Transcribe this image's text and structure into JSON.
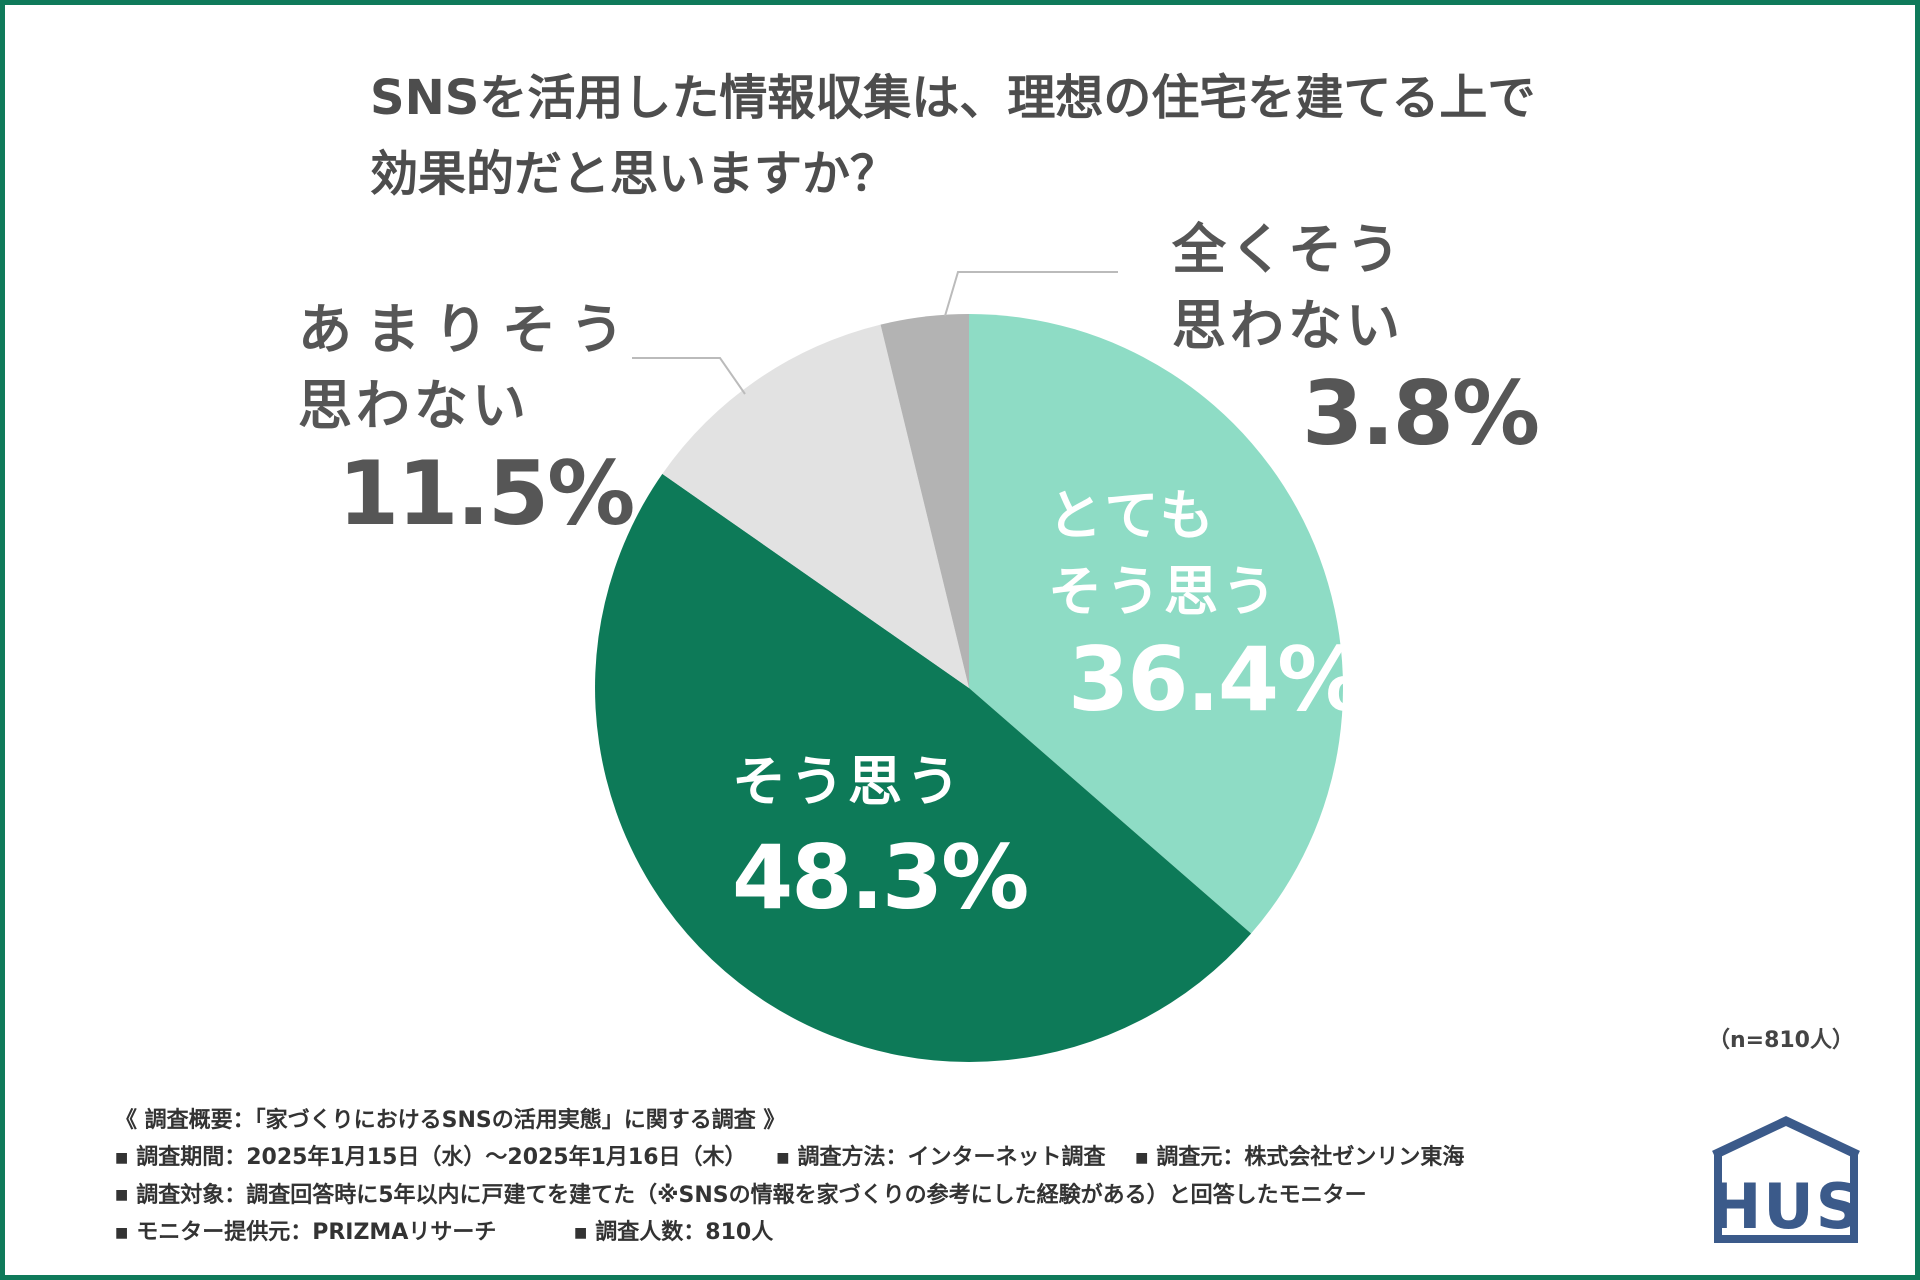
{
  "title": {
    "line1": "SNSを活用した情報収集は、理想の住宅を建てる上で",
    "line2": "効果的だと思いますか？"
  },
  "chart_data": {
    "type": "pie",
    "title": "SNSを活用した情報収集は、理想の住宅を建てる上で効果的だと思いますか？",
    "slices": [
      {
        "key": "very",
        "label_line1": "とても",
        "label_line2": "そう思う",
        "value": 36.4,
        "pct_label": "36.4%",
        "color": "#8edcc5"
      },
      {
        "key": "agree",
        "label_line1": "そう思う",
        "label_line2": "",
        "value": 48.3,
        "pct_label": "48.3%",
        "color": "#0d7a58"
      },
      {
        "key": "notmuch",
        "label_line1": "あまりそう",
        "label_line2": "思わない",
        "value": 11.5,
        "pct_label": "11.5%",
        "color": "#e2e2e2"
      },
      {
        "key": "notatall",
        "label_line1": "全くそう",
        "label_line2": "思わない",
        "value": 3.8,
        "pct_label": "3.8%",
        "color": "#b3b3b3"
      }
    ],
    "start": "12 o'clock, clockwise"
  },
  "n_note": "（n=810人）",
  "summary": {
    "heading": "《 調査概要：「家づくりにおけるSNSの活用実態」に関する調査 》",
    "period": "調査期間：2025年1月15日（水）～2025年1月16日（木）",
    "method": "調査方法：インターネット調査",
    "source": "調査元：株式会社ゼンリン東海",
    "target": "調査対象：調査回答時に5年以内に戸建てを建てた（※SNSの情報を家づくりの参考にした経験がある）と回答したモニター",
    "provider": "モニター提供元：PRIZMAリサーチ",
    "count": "調査人数：810人",
    "bullet": "■"
  },
  "logo": {
    "text": "HUS",
    "color": "#3b5a8a"
  }
}
